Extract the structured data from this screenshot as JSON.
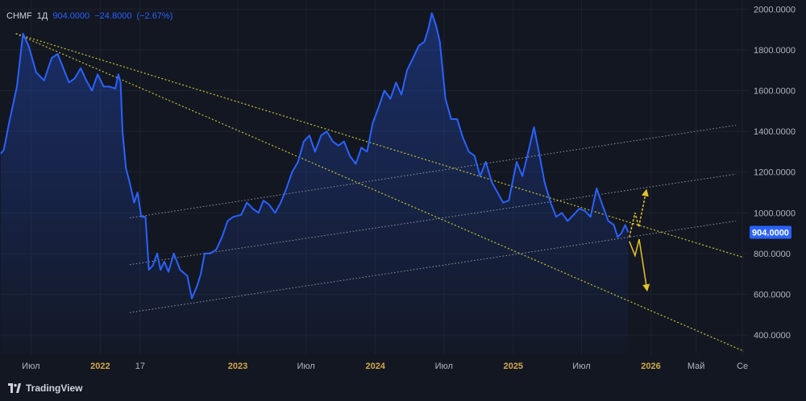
{
  "legend": {
    "symbol": "CHMF",
    "interval": "1Д",
    "last": "904.0000",
    "change": "−24.8000",
    "change_pct": "(−2.67%)"
  },
  "brand": {
    "name": "TradingView",
    "icon": "tradingview-logo-icon"
  },
  "colors": {
    "background": "#131722",
    "price_line": "#2962ff",
    "grid": "#1e222d",
    "axis_text": "#b2b5be",
    "time_label": "#d1a94a",
    "trendline": "#c9c332",
    "channel": "#9598a1",
    "forecast_arrow": "#e6c229",
    "price_tag_bg": "#2962ff"
  },
  "chart_data": {
    "type": "area",
    "symbol": "CHMF",
    "interval": "1Д",
    "y_axis": {
      "ylim": [
        305,
        2045
      ],
      "ticks": [
        400,
        600,
        800,
        1000,
        1200,
        1400,
        1600,
        1800,
        2000
      ],
      "tick_labels": [
        "400.0000",
        "600.0000",
        "800.0000",
        "1000.0000",
        "1200.0000",
        "1400.0000",
        "1600.0000",
        "1800.0000",
        "2000.0000"
      ]
    },
    "x_axis": {
      "xlim": [
        "2021-04-10",
        "2026-09-20"
      ],
      "ticks": [
        "2021-07-01",
        "2022-01-01",
        "2022-04-17",
        "2023-01-01",
        "2023-07-01",
        "2024-01-01",
        "2024-07-01",
        "2025-01-01",
        "2025-07-01",
        "2026-01-01",
        "2026-05-01",
        "2026-09-01"
      ],
      "tick_labels": [
        "Июл",
        "2022",
        "17",
        "2023",
        "Июл",
        "2024",
        "Июл",
        "2025",
        "Июл",
        "2026",
        "Май",
        "Се"
      ]
    },
    "current_price": {
      "value": 904,
      "label": "904.0000"
    },
    "series": [
      {
        "x": [
          "2021-04-12",
          "2021-04-20",
          "2021-05-05",
          "2021-05-25",
          "2021-06-10",
          "2021-06-25",
          "2021-07-15",
          "2021-08-05",
          "2021-08-25",
          "2021-09-10",
          "2021-09-25",
          "2021-10-10",
          "2021-10-25",
          "2021-11-10",
          "2021-11-25",
          "2021-12-10",
          "2021-12-25",
          "2022-01-10",
          "2022-01-25",
          "2022-02-10",
          "2022-02-18",
          "2022-02-24",
          "2022-03-01",
          "2022-03-10",
          "2022-03-20",
          "2022-04-01",
          "2022-04-10",
          "2022-04-20",
          "2022-05-01",
          "2022-05-10",
          "2022-05-20",
          "2022-06-01",
          "2022-06-10",
          "2022-06-20",
          "2022-07-01",
          "2022-07-15",
          "2022-08-01",
          "2022-08-20",
          "2022-09-01",
          "2022-09-15",
          "2022-09-25",
          "2022-10-05",
          "2022-10-20",
          "2022-11-05",
          "2022-11-20",
          "2022-12-05",
          "2022-12-20",
          "2023-01-10",
          "2023-01-25",
          "2023-02-10",
          "2023-02-25",
          "2023-03-10",
          "2023-03-25",
          "2023-04-10",
          "2023-04-25",
          "2023-05-10",
          "2023-05-25",
          "2023-06-10",
          "2023-06-25",
          "2023-07-10",
          "2023-07-25",
          "2023-08-10",
          "2023-08-25",
          "2023-09-10",
          "2023-09-25",
          "2023-10-10",
          "2023-10-25",
          "2023-11-10",
          "2023-11-25",
          "2023-12-10",
          "2023-12-25",
          "2024-01-10",
          "2024-01-25",
          "2024-02-10",
          "2024-02-25",
          "2024-03-10",
          "2024-03-25",
          "2024-04-10",
          "2024-04-25",
          "2024-05-10",
          "2024-05-20",
          "2024-05-30",
          "2024-06-10",
          "2024-06-20",
          "2024-07-05",
          "2024-07-20",
          "2024-08-05",
          "2024-08-20",
          "2024-09-05",
          "2024-09-20",
          "2024-10-05",
          "2024-10-20",
          "2024-11-05",
          "2024-11-20",
          "2024-12-05",
          "2024-12-20",
          "2025-01-10",
          "2025-01-25",
          "2025-02-10",
          "2025-02-25",
          "2025-03-10",
          "2025-03-25",
          "2025-04-10",
          "2025-04-25",
          "2025-05-10",
          "2025-05-25",
          "2025-06-10",
          "2025-06-25",
          "2025-07-10",
          "2025-07-25",
          "2025-08-10",
          "2025-08-25",
          "2025-09-10",
          "2025-09-25",
          "2025-10-05",
          "2025-10-15",
          "2025-10-25",
          "2025-11-02"
        ],
        "y": [
          1290,
          1310,
          1450,
          1620,
          1880,
          1820,
          1690,
          1650,
          1760,
          1780,
          1710,
          1640,
          1660,
          1710,
          1650,
          1600,
          1680,
          1620,
          1620,
          1610,
          1680,
          1640,
          1400,
          1220,
          1150,
          1050,
          1100,
          980,
          980,
          720,
          740,
          800,
          720,
          760,
          710,
          800,
          720,
          690,
          580,
          640,
          700,
          800,
          800,
          820,
          880,
          960,
          980,
          990,
          1050,
          1020,
          1000,
          1060,
          1040,
          1000,
          1050,
          1120,
          1200,
          1250,
          1350,
          1380,
          1300,
          1380,
          1400,
          1350,
          1330,
          1350,
          1280,
          1240,
          1320,
          1300,
          1440,
          1520,
          1600,
          1560,
          1640,
          1580,
          1700,
          1760,
          1820,
          1840,
          1900,
          1980,
          1920,
          1840,
          1560,
          1460,
          1460,
          1370,
          1300,
          1280,
          1180,
          1250,
          1150,
          1100,
          1050,
          1060,
          1250,
          1180,
          1300,
          1420,
          1300,
          1150,
          1050,
          980,
          1000,
          960,
          990,
          1020,
          1010,
          980,
          1120,
          1040,
          960,
          940,
          880,
          900,
          940,
          904
        ]
      }
    ],
    "annotations": {
      "trendlines": [
        {
          "kind": "descending-trendline",
          "from": [
            "2021-05-22",
            1880
          ],
          "to": [
            "2026-09-05",
            780
          ]
        },
        {
          "kind": "descending-trendline",
          "from": [
            "2021-05-22",
            1880
          ],
          "to": [
            "2026-09-05",
            320
          ]
        }
      ],
      "channel_lines": [
        {
          "from": [
            "2022-03-20",
            975
          ],
          "to": [
            "2026-08-15",
            1430
          ]
        },
        {
          "from": [
            "2022-03-20",
            745
          ],
          "to": [
            "2026-08-15",
            1190
          ]
        },
        {
          "from": [
            "2022-03-20",
            510
          ],
          "to": [
            "2026-08-15",
            960
          ]
        }
      ],
      "forecast_arrows": [
        {
          "kind": "zigzag-up",
          "points": [
            [
              "2025-11-05",
              880
            ],
            [
              "2025-11-20",
              1000
            ],
            [
              "2025-11-30",
              930
            ],
            [
              "2025-12-20",
              1110
            ]
          ]
        },
        {
          "kind": "zigzag-down",
          "points": [
            [
              "2025-11-05",
              860
            ],
            [
              "2025-11-20",
              790
            ],
            [
              "2025-12-01",
              870
            ],
            [
              "2025-12-22",
              620
            ]
          ]
        }
      ]
    }
  }
}
